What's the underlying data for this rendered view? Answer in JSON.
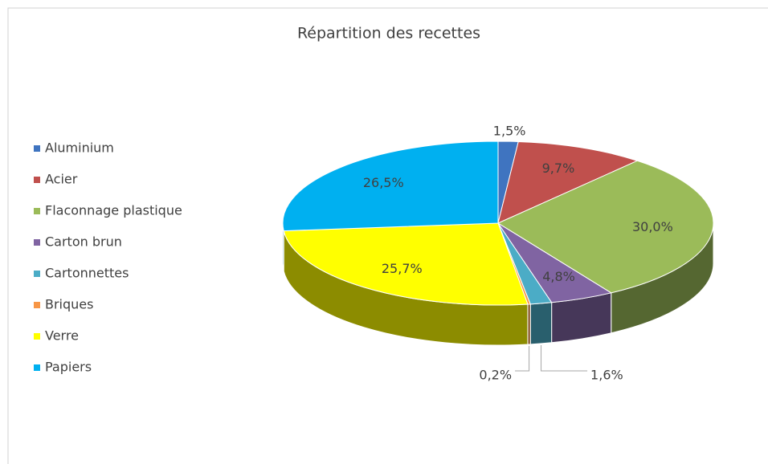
{
  "chart_data": {
    "type": "pie",
    "title": "Répartition des recettes",
    "categories": [
      "Aluminium",
      "Acier",
      "Flaconnage plastique",
      "Carton brun",
      "Cartonnettes",
      "Briques",
      "Verre",
      "Papiers"
    ],
    "values": [
      1.5,
      9.7,
      30.0,
      4.8,
      1.6,
      0.2,
      25.7,
      26.5
    ],
    "value_labels": [
      "1,5%",
      "9,7%",
      "30,0%",
      "4,8%",
      "1,6%",
      "0,2%",
      "25,7%",
      "26,5%"
    ],
    "colors": [
      "#3f74c0",
      "#c0504d",
      "#9bbb59",
      "#8064a2",
      "#4bacc6",
      "#f79646",
      "#ffff00",
      "#00b0f0"
    ],
    "legend": "left"
  }
}
